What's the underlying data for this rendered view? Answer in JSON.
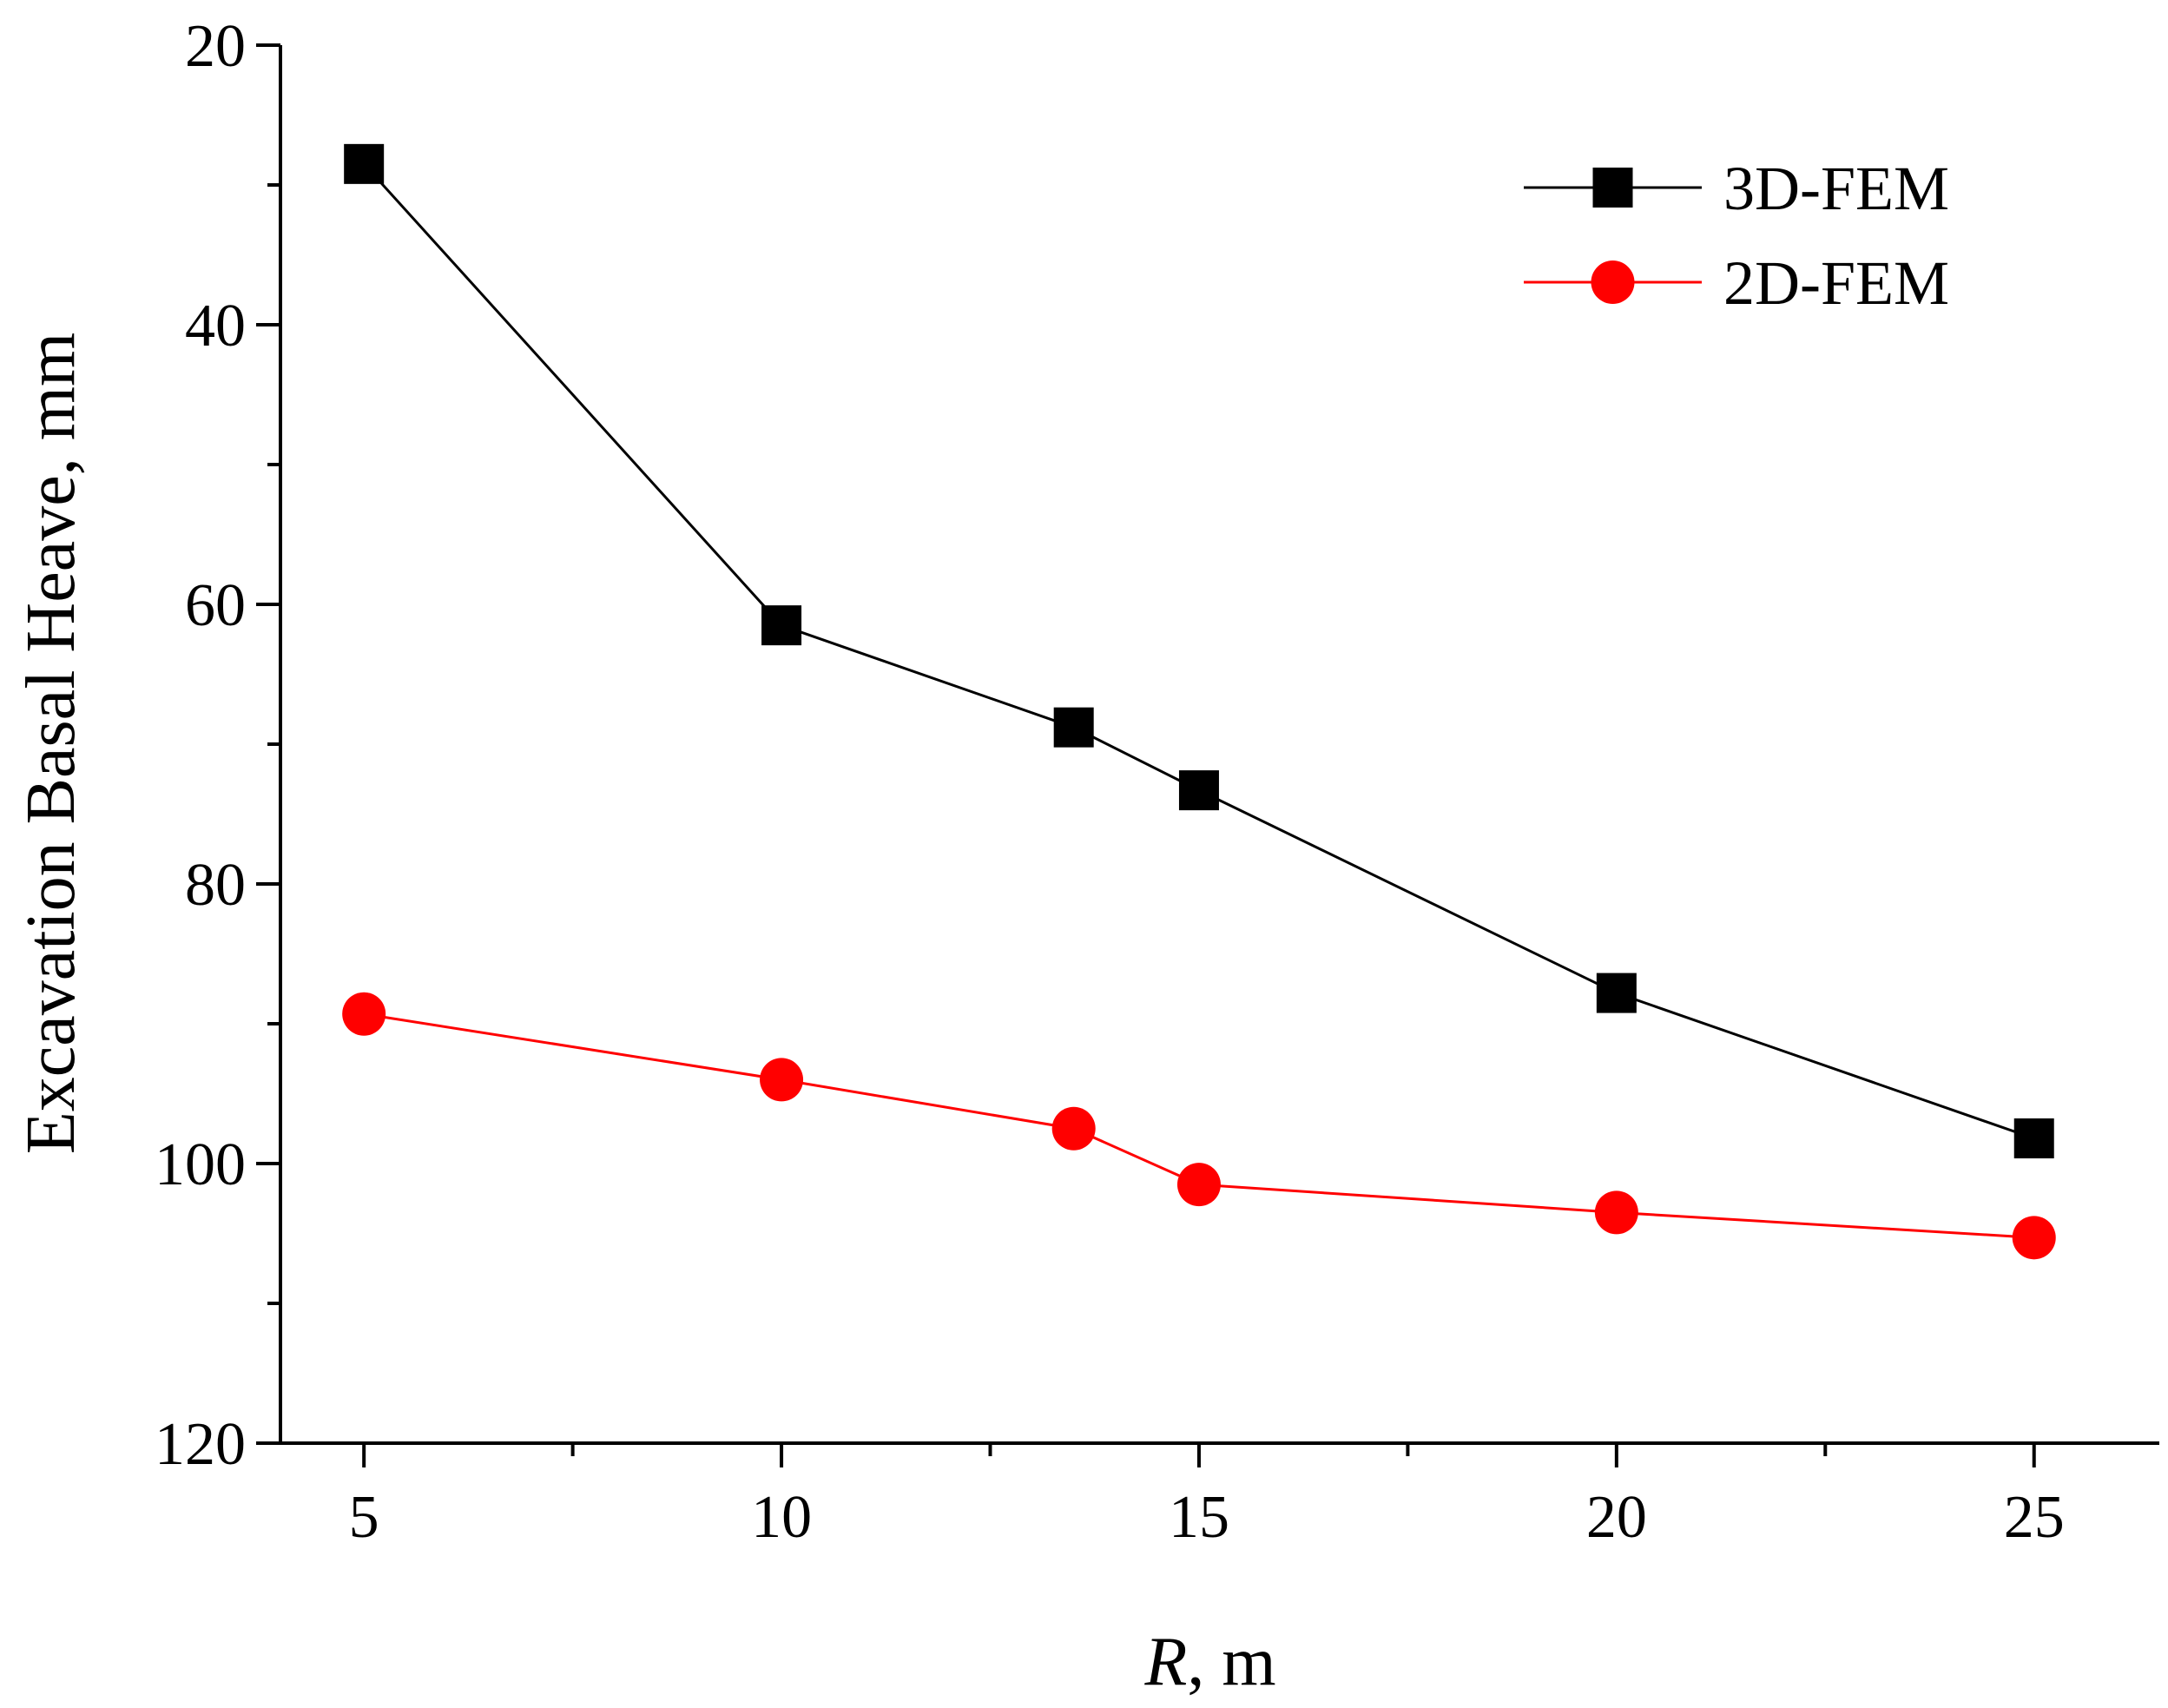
{
  "chart_data": {
    "type": "line",
    "title": "",
    "xlabel": {
      "italic": "R",
      "rest": ", m"
    },
    "ylabel": "Excavation Basal Heave, mm",
    "xlim": [
      4,
      26.5
    ],
    "ylim": [
      20,
      120
    ],
    "y_inverted": true,
    "xticks": [
      5,
      10,
      15,
      20,
      25
    ],
    "xticks_minor": [
      7.5,
      12.5,
      17.5,
      22.5
    ],
    "yticks": [
      20,
      40,
      60,
      80,
      100,
      120
    ],
    "yticks_minor": [
      30,
      50,
      70,
      90,
      110
    ],
    "legend_position": "top-right",
    "series": [
      {
        "name": "3D-FEM",
        "color": "#000000",
        "marker": "square",
        "x": [
          5,
          10,
          13.5,
          15,
          20,
          25
        ],
        "values": [
          28.5,
          61.5,
          68.8,
          73.3,
          87.8,
          98.2
        ]
      },
      {
        "name": "2D-FEM",
        "color": "#ff0000",
        "marker": "circle",
        "x": [
          5,
          10,
          13.5,
          15,
          20,
          25
        ],
        "values": [
          89.3,
          94.0,
          97.5,
          101.5,
          103.5,
          105.3
        ]
      }
    ]
  }
}
